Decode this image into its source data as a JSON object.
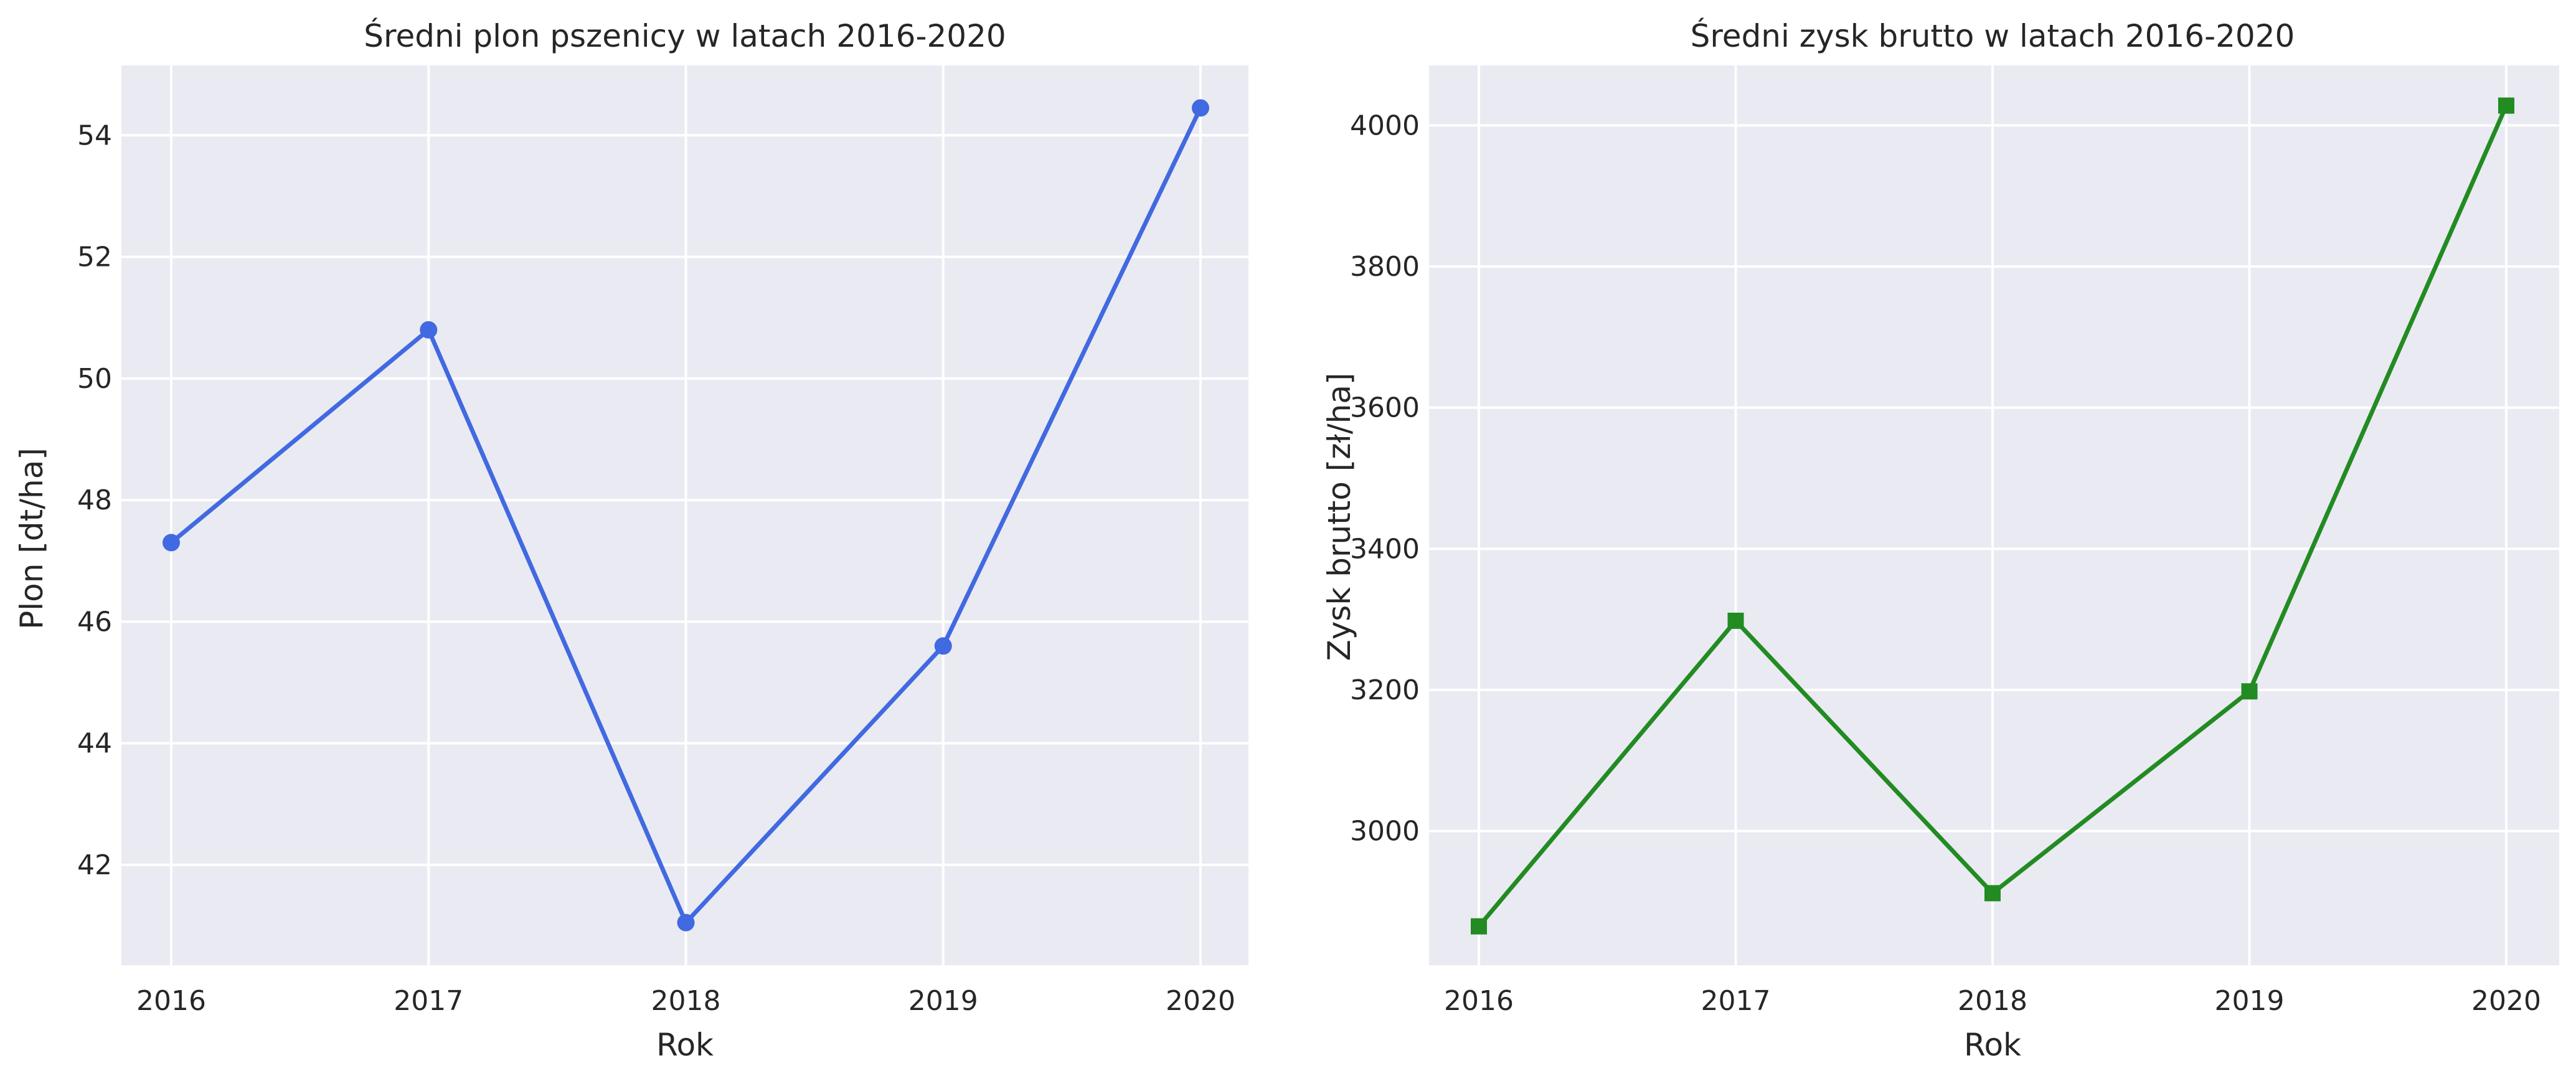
{
  "chart_data": [
    {
      "type": "line",
      "title": "Średni plon pszenicy w latach 2016-2020",
      "xlabel": "Rok",
      "ylabel": "Plon [dt/ha]",
      "categories": [
        "2016",
        "2017",
        "2018",
        "2019",
        "2020"
      ],
      "series": [
        {
          "values": [
            47.3,
            50.8,
            41.05,
            45.6,
            54.45
          ],
          "color": "#4169e1",
          "marker": "circle"
        }
      ],
      "yticks": [
        42,
        44,
        46,
        48,
        50,
        52,
        54
      ],
      "ylim": [
        40.35,
        55.15
      ],
      "grid": true
    },
    {
      "type": "line",
      "title": "Średni zysk brutto w latach 2016-2020",
      "xlabel": "Rok",
      "ylabel": "Zysk brutto [zł/ha]",
      "categories": [
        "2016",
        "2017",
        "2018",
        "2019",
        "2020"
      ],
      "series": [
        {
          "values": [
            2865,
            3298,
            2912,
            3198,
            4028
          ],
          "color": "#228b22",
          "marker": "square"
        }
      ],
      "yticks": [
        3000,
        3200,
        3400,
        3600,
        3800,
        4000
      ],
      "ylim": [
        2810,
        4085
      ],
      "grid": true
    }
  ],
  "style": {
    "background": "#eaeaf2",
    "grid_color": "#ffffff"
  }
}
